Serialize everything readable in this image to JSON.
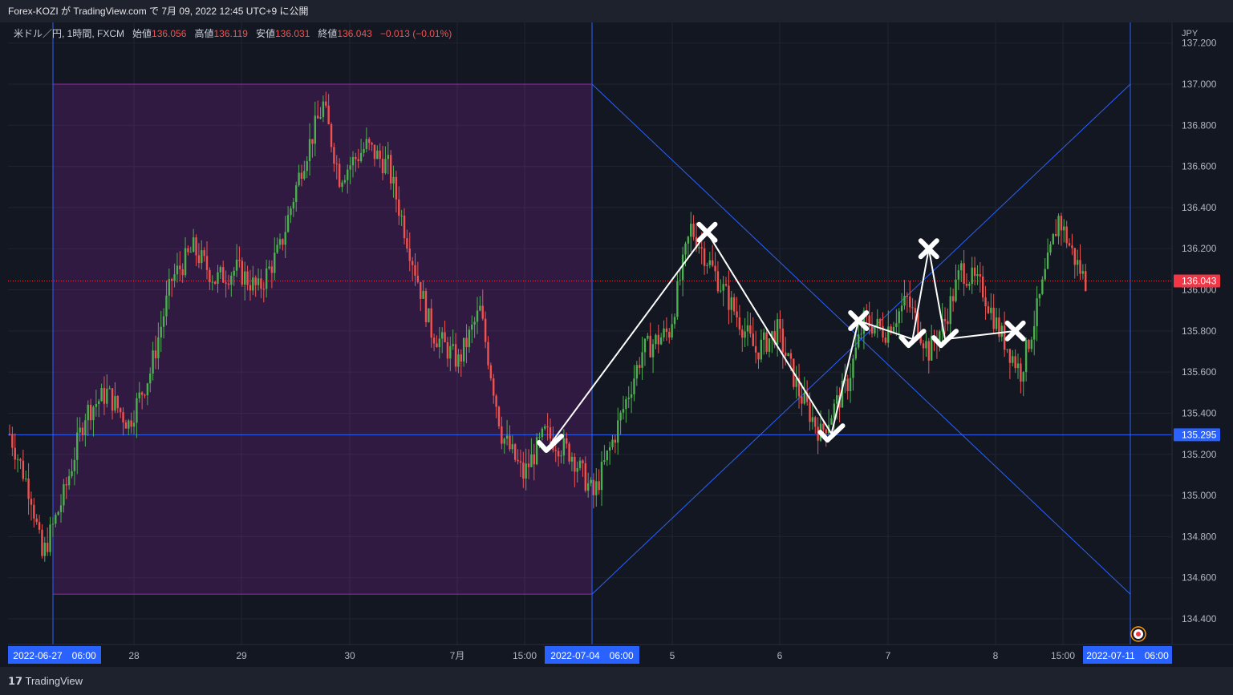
{
  "header": {
    "title": "Forex-KOZI が TradingView.com で 7月 09, 2022 12:45 UTC+9 に公開"
  },
  "legend": {
    "symbol": "米ドル／円, 1時間, FXCM",
    "open_label": "始値",
    "open": "136.056",
    "high_label": "高値",
    "high": "136.119",
    "low_label": "安値",
    "low": "136.031",
    "close_label": "終値",
    "close": "136.043",
    "change": "−0.013 (−0.01%)"
  },
  "price_axis": {
    "currency": "JPY",
    "ticks": [
      "137.200",
      "137.000",
      "136.800",
      "136.600",
      "136.400",
      "136.200",
      "136.000",
      "135.800",
      "135.600",
      "135.400",
      "135.200",
      "135.000",
      "134.800",
      "134.600",
      "134.400"
    ],
    "current_price_label": "136.043",
    "horizontal_line_label": "135.295"
  },
  "time_axis": {
    "labels": [
      "28",
      "29",
      "30",
      "7月",
      "15:00",
      "5",
      "6",
      "7",
      "8",
      "15:00"
    ],
    "highlight_labels": [
      "2022-06-27　06:00",
      "2022-07-04　06:00",
      "2022-07-11　06:00"
    ]
  },
  "footer": {
    "brand": "TradingView"
  },
  "colors": {
    "up": "#26a69a",
    "up_bright": "#4caf50",
    "down": "#ef5350",
    "box": "#9c27b0",
    "line": "#2962ff",
    "label_bg": "#2962ff",
    "price_label": "#f23645"
  },
  "chart_data": {
    "type": "candlestick",
    "instrument": "米ドル／円",
    "timeframe": "1時間",
    "ylim": [
      134.33,
      137.22
    ],
    "price_lines": {
      "current": 136.043,
      "horizontal": 135.295
    },
    "range_box": {
      "from": "2022-06-27 06:00",
      "to": "2022-07-04 06:00",
      "high": 137.0,
      "low": 134.52
    },
    "close_path_anchors": [
      [
        0,
        135.3
      ],
      [
        8,
        135.0
      ],
      [
        12,
        134.7
      ],
      [
        20,
        135.0
      ],
      [
        28,
        135.4
      ],
      [
        36,
        135.5
      ],
      [
        44,
        135.35
      ],
      [
        52,
        135.6
      ],
      [
        60,
        136.05
      ],
      [
        68,
        136.2
      ],
      [
        76,
        136.05
      ],
      [
        84,
        136.1
      ],
      [
        92,
        136.0
      ],
      [
        100,
        136.2
      ],
      [
        108,
        136.6
      ],
      [
        116,
        136.9
      ],
      [
        122,
        136.55
      ],
      [
        132,
        136.7
      ],
      [
        140,
        136.6
      ],
      [
        148,
        136.2
      ],
      [
        156,
        135.8
      ],
      [
        166,
        135.65
      ],
      [
        174,
        135.9
      ],
      [
        182,
        135.3
      ],
      [
        190,
        135.1
      ],
      [
        198,
        135.3
      ],
      [
        208,
        135.2
      ],
      [
        216,
        135.0
      ],
      [
        224,
        135.3
      ],
      [
        234,
        135.7
      ],
      [
        244,
        135.8
      ],
      [
        252,
        136.3
      ],
      [
        260,
        136.1
      ],
      [
        268,
        135.9
      ],
      [
        276,
        135.7
      ],
      [
        284,
        135.8
      ],
      [
        292,
        135.5
      ],
      [
        300,
        135.3
      ],
      [
        310,
        135.55
      ],
      [
        316,
        135.85
      ],
      [
        324,
        135.8
      ],
      [
        332,
        135.95
      ],
      [
        340,
        135.7
      ],
      [
        346,
        135.85
      ],
      [
        352,
        136.1
      ],
      [
        360,
        136.0
      ],
      [
        366,
        135.8
      ],
      [
        374,
        135.6
      ],
      [
        380,
        135.9
      ],
      [
        388,
        136.35
      ],
      [
        394,
        136.15
      ],
      [
        398,
        136.04
      ]
    ],
    "annotations": [
      {
        "type": "check",
        "time_index": 200,
        "price": 135.25
      },
      {
        "type": "cross",
        "time_index": 258,
        "price": 136.28
      },
      {
        "type": "check",
        "time_index": 304,
        "price": 135.3
      },
      {
        "type": "cross",
        "time_index": 314,
        "price": 135.85
      },
      {
        "type": "check",
        "time_index": 334,
        "price": 135.76
      },
      {
        "type": "cross",
        "time_index": 340,
        "price": 136.2
      },
      {
        "type": "check",
        "time_index": 346,
        "price": 135.76
      },
      {
        "type": "cross",
        "time_index": 372,
        "price": 135.8
      }
    ]
  }
}
